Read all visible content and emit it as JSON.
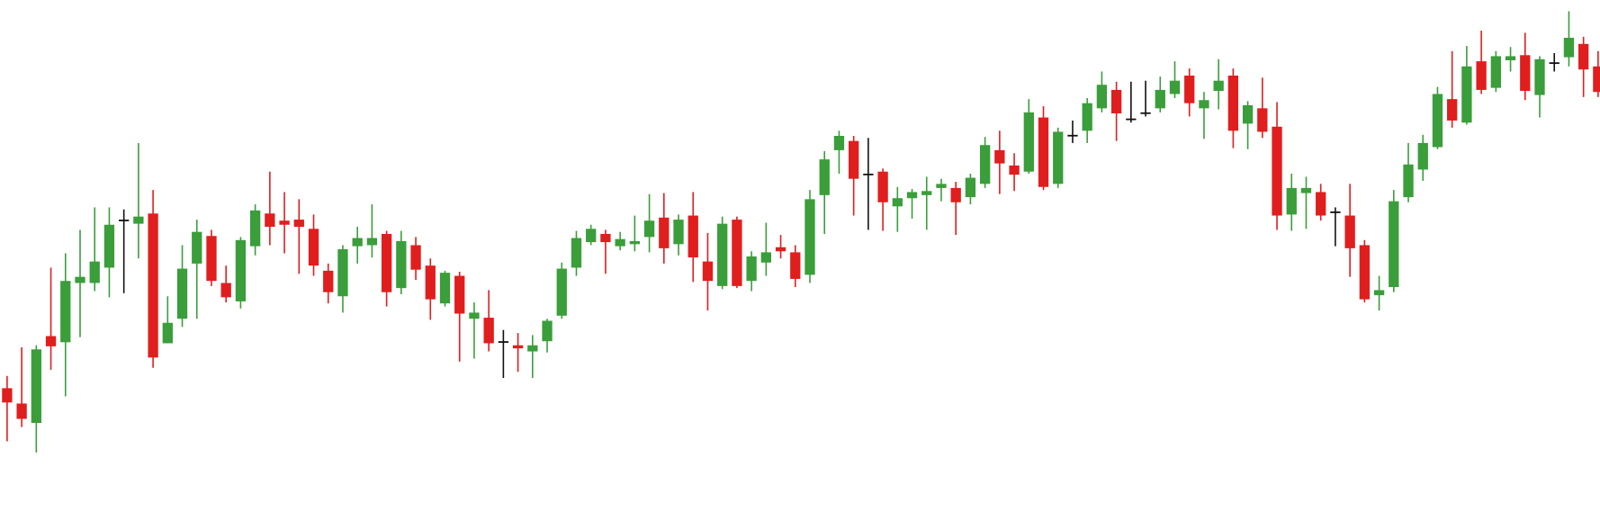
{
  "chart_data": {
    "type": "candlestick",
    "ylim": [
      0,
      510
    ],
    "up_color": "#3a9e3a",
    "down_color": "#e01e1e",
    "doji_color": "#111111",
    "open": [
      130,
      115,
      96,
      181,
      175,
      233,
      233,
      248,
      295,
      291,
      301,
      174,
      198,
      252,
      279,
      233,
      215,
      269,
      301,
      294,
      295,
      286,
      245,
      220,
      269,
      270,
      281,
      228,
      270,
      250,
      213,
      240,
      198,
      199,
      176,
      172,
      166,
      176,
      201,
      248,
      273,
      281,
      269,
      271,
      278,
      297,
      271,
      299,
      254,
      230,
      295,
      235,
      253,
      268,
      263,
      241,
      319,
      363,
      372,
      340,
      342,
      308,
      316,
      319,
      326,
      326,
      317,
      330,
      363,
      348,
      342,
      395,
      330,
      378,
      382,
      404,
      422,
      394,
      400,
      404,
      418,
      436,
      404,
      421,
      436,
      389,
      404,
      386,
      300,
      321,
      322,
      303,
      299,
      270,
      221,
      229,
      317,
      344,
      366,
      413,
      390,
      450,
      424,
      451,
      456,
      417,
      449,
      454,
      467,
      445
    ],
    "high": [
      142,
      170,
      172,
      248,
      262,
      285,
      307,
      307,
      305,
      370,
      324,
      220,
      270,
      295,
      285,
      250,
      278,
      310,
      342,
      322,
      315,
      300,
      252,
      270,
      288,
      310,
      284,
      284,
      278,
      257,
      245,
      244,
      214,
      226,
      187,
      184,
      182,
      198,
      253,
      284,
      290,
      285,
      283,
      299,
      320,
      321,
      300,
      322,
      282,
      298,
      298,
      264,
      292,
      280,
      270,
      324,
      362,
      382,
      377,
      375,
      345,
      327,
      325,
      337,
      335,
      332,
      340,
      376,
      382,
      360,
      413,
      406,
      385,
      392,
      414,
      440,
      430,
      430,
      431,
      435,
      450,
      443,
      420,
      452,
      443,
      411,
      434,
      410,
      340,
      337,
      330,
      307,
      330,
      275,
      240,
      324,
      370,
      378,
      425,
      460,
      465,
      480,
      460,
      464,
      478,
      455,
      458,
      499,
      474,
      460
    ],
    "low": [
      78,
      92,
      67,
      148,
      122,
      180,
      225,
      219,
      223,
      257,
      150,
      174,
      190,
      198,
      230,
      214,
      208,
      260,
      270,
      262,
      242,
      240,
      213,
      204,
      252,
      258,
      210,
      222,
      236,
      197,
      210,
      156,
      159,
      166,
      140,
      146,
      140,
      165,
      198,
      240,
      270,
      242,
      265,
      264,
      263,
      252,
      260,
      234,
      206,
      227,
      228,
      225,
      240,
      257,
      229,
      233,
      281,
      340,
      299,
      285,
      284,
      283,
      296,
      285,
      313,
      280,
      310,
      326,
      320,
      323,
      340,
      324,
      326,
      370,
      370,
      400,
      372,
      390,
      396,
      400,
      414,
      396,
      374,
      403,
      365,
      364,
      375,
      285,
      284,
      286,
      294,
      269,
      239,
      214,
      206,
      224,
      312,
      333,
      364,
      385,
      388,
      418,
      420,
      440,
      412,
      395,
      440,
      445,
      415,
      415
    ],
    "close": [
      116,
      100,
      168,
      171,
      235,
      239,
      254,
      290,
      295,
      298,
      160,
      194,
      247,
      283,
      235,
      219,
      275,
      304,
      288,
      290,
      288,
      250,
      224,
      266,
      277,
      277,
      224,
      274,
      246,
      217,
      243,
      203,
      204,
      174,
      176,
      169,
      172,
      196,
      247,
      277,
      286,
      273,
      276,
      274,
      294,
      267,
      295,
      258,
      235,
      291,
      230,
      259,
      263,
      264,
      237,
      315,
      354,
      377,
      335,
      340,
      312,
      316,
      322,
      323,
      330,
      312,
      336,
      368,
      350,
      339,
      400,
      327,
      381,
      378,
      409,
      427,
      399,
      394,
      400,
      422,
      431,
      409,
      412,
      431,
      382,
      407,
      381,
      299,
      326,
      326,
      299,
      303,
      267,
      217,
      226,
      313,
      349,
      370,
      418,
      392,
      445,
      422,
      455,
      455,
      421,
      452,
      449,
      473,
      442,
      420
    ]
  }
}
